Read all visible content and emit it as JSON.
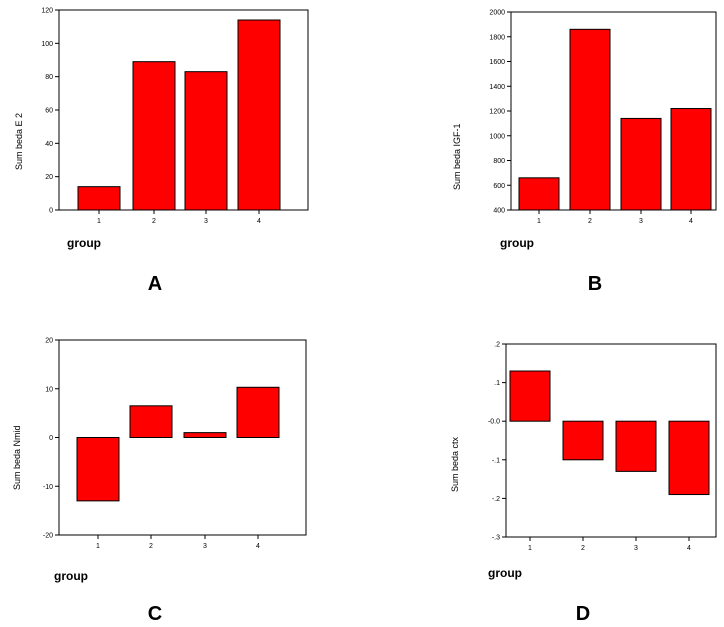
{
  "chart_data": [
    {
      "type": "bar",
      "panel_letter": "A",
      "categories": [
        "1",
        "2",
        "3",
        "4"
      ],
      "values": [
        14,
        89,
        83,
        114
      ],
      "ylabel": "Sum beda E 2",
      "xlabel": "group",
      "ylim": [
        0,
        120
      ],
      "yticks": [
        0,
        20,
        40,
        60,
        80,
        100,
        120
      ],
      "ytick_labels": [
        "0",
        "20",
        "40",
        "60",
        "80",
        "100",
        "120"
      ],
      "bar_color": "#ff0000",
      "grid": false
    },
    {
      "type": "bar",
      "panel_letter": "B",
      "categories": [
        "1",
        "2",
        "3",
        "4"
      ],
      "values": [
        660,
        1860,
        1140,
        1220
      ],
      "ylabel": "Sum beda IGF-1",
      "xlabel": "group",
      "ylim": [
        400,
        2000
      ],
      "yticks": [
        400,
        600,
        800,
        1000,
        1200,
        1400,
        1600,
        1800,
        2000
      ],
      "ytick_labels": [
        "400",
        "600",
        "800",
        "1000",
        "1200",
        "1400",
        "1600",
        "1800",
        "2000"
      ],
      "bar_color": "#ff0000",
      "grid": false
    },
    {
      "type": "bar",
      "panel_letter": "C",
      "categories": [
        "1",
        "2",
        "3",
        "4"
      ],
      "values": [
        -13,
        6.5,
        1,
        10.3
      ],
      "ylabel": "Sum beda Nmid",
      "xlabel": "group",
      "ylim": [
        -20,
        20
      ],
      "yticks": [
        -20,
        -10,
        0,
        10,
        20
      ],
      "ytick_labels": [
        "-20",
        "-10",
        "0",
        "10",
        "20"
      ],
      "bar_color": "#ff0000",
      "grid": false
    },
    {
      "type": "bar",
      "panel_letter": "D",
      "categories": [
        "1",
        "2",
        "3",
        "4"
      ],
      "values": [
        0.13,
        -0.1,
        -0.13,
        -0.19
      ],
      "ylabel": "Sum beda ctx",
      "xlabel": "group",
      "ylim": [
        -0.3,
        0.2
      ],
      "yticks": [
        -0.3,
        -0.2,
        -0.1,
        0,
        0.1,
        0.2
      ],
      "ytick_labels": [
        "-.3",
        "-.2",
        "-.1",
        "-0.0",
        ".1",
        ".2"
      ],
      "bar_color": "#ff0000",
      "grid": false
    }
  ]
}
